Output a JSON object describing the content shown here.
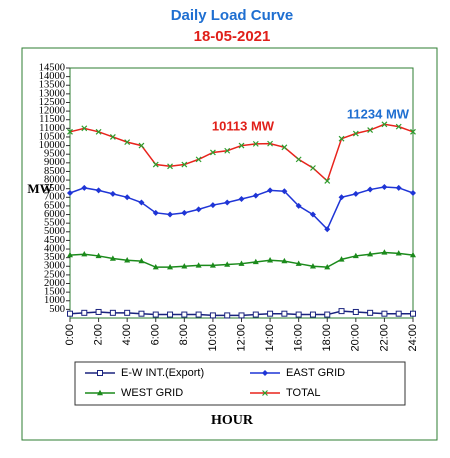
{
  "chart_data": {
    "type": "line",
    "title": "Daily Load Curve",
    "subtitle": "18-05-2021",
    "y_label": "MW",
    "x_label": "HOUR",
    "annotations": [
      "10113 MW",
      "11234 MW"
    ],
    "x": [
      0,
      1,
      2,
      3,
      4,
      5,
      6,
      7,
      8,
      9,
      10,
      11,
      12,
      13,
      14,
      15,
      16,
      17,
      18,
      19,
      20,
      21,
      22,
      23,
      24
    ],
    "xlim": [
      0,
      24
    ],
    "xticks": [
      {
        "value": 0,
        "label": "0:00"
      },
      {
        "value": 2,
        "label": "2:00"
      },
      {
        "value": 4,
        "label": "4:00"
      },
      {
        "value": 6,
        "label": "6:00"
      },
      {
        "value": 8,
        "label": "8:00"
      },
      {
        "value": 10,
        "label": "10:00"
      },
      {
        "value": 12,
        "label": "12:00"
      },
      {
        "value": 14,
        "label": "14:00"
      },
      {
        "value": 16,
        "label": "16:00"
      },
      {
        "value": 18,
        "label": "18:00"
      },
      {
        "value": 20,
        "label": "20:00"
      },
      {
        "value": 22,
        "label": "22:00"
      },
      {
        "value": 24,
        "label": "24:00"
      }
    ],
    "ylim": [
      0,
      14500
    ],
    "yticks": [
      500,
      1000,
      1500,
      2000,
      2500,
      3000,
      3500,
      4000,
      4500,
      5000,
      5500,
      6000,
      6500,
      7000,
      7500,
      8000,
      8500,
      9000,
      9500,
      10000,
      10500,
      11000,
      11500,
      12000,
      12500,
      13000,
      13500,
      14000,
      14500
    ],
    "grid": false,
    "series": [
      {
        "name": "E-W INT.(Export)",
        "color": "#1a237e",
        "marker": "square",
        "values": [
          250,
          300,
          350,
          300,
          300,
          250,
          200,
          200,
          200,
          200,
          150,
          150,
          150,
          200,
          250,
          250,
          200,
          200,
          200,
          400,
          350,
          300,
          250,
          250,
          250
        ]
      },
      {
        "name": "EAST GRID",
        "color": "#1f35d6",
        "marker": "diamond",
        "values": [
          7250,
          7550,
          7400,
          7200,
          7000,
          6700,
          6100,
          6000,
          6100,
          6300,
          6550,
          6700,
          6900,
          7100,
          7400,
          7350,
          6500,
          6000,
          5150,
          7000,
          7200,
          7450,
          7600,
          7550,
          7250
        ]
      },
      {
        "name": "WEST GRID",
        "color": "#1b8a1b",
        "marker": "triangle",
        "values": [
          3650,
          3700,
          3600,
          3450,
          3350,
          3300,
          2950,
          2950,
          3000,
          3050,
          3050,
          3100,
          3150,
          3250,
          3350,
          3300,
          3150,
          3000,
          2950,
          3400,
          3600,
          3700,
          3800,
          3750,
          3650
        ]
      },
      {
        "name": "TOTAL",
        "color": "#e8231c",
        "marker": "x",
        "values": [
          10800,
          11000,
          10800,
          10500,
          10200,
          10000,
          8900,
          8800,
          8900,
          9200,
          9600,
          9700,
          10000,
          10100,
          10113,
          9900,
          9200,
          8700,
          7950,
          10400,
          10700,
          10900,
          11234,
          11100,
          10800
        ]
      }
    ]
  }
}
